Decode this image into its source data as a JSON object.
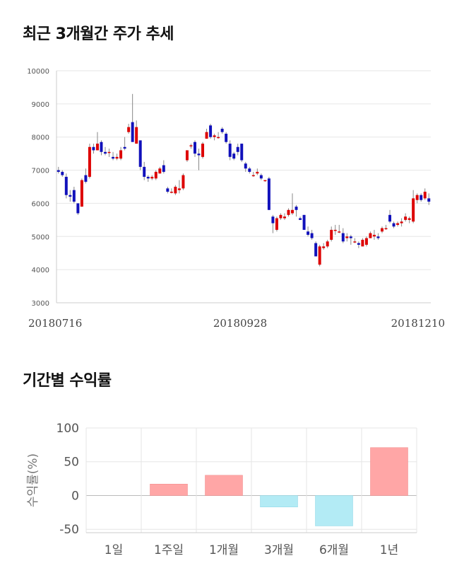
{
  "sections": {
    "stock_title": "최근 3개월간 주가 추세",
    "returns_title": "기간별 수익률"
  },
  "colors": {
    "up": "#dd0000",
    "down": "#1111bb",
    "grid": "#e6e6e6",
    "positive_bar": "#ffa6a6",
    "negative_bar": "#b3ebf5",
    "wick": "#888888"
  },
  "chart_data": [
    {
      "type": "candlestick",
      "title": "최근 3개월간 주가 추세",
      "ylim": [
        3000,
        10000
      ],
      "yticks": [
        3000,
        4000,
        5000,
        6000,
        7000,
        8000,
        9000,
        10000
      ],
      "xtick_labels": [
        "20180716",
        "20180928",
        "20181210"
      ],
      "grid": true,
      "ohlc": [
        [
          7000,
          7100,
          6900,
          6950
        ],
        [
          6950,
          7000,
          6800,
          6850
        ],
        [
          6800,
          6900,
          6150,
          6250
        ],
        [
          6250,
          6400,
          6050,
          6200
        ],
        [
          6400,
          6500,
          6000,
          6050
        ],
        [
          6000,
          6000,
          5650,
          5700
        ],
        [
          5900,
          6750,
          5900,
          6700
        ],
        [
          6850,
          7050,
          6600,
          6650
        ],
        [
          6800,
          7800,
          6750,
          7700
        ],
        [
          7700,
          7800,
          7500,
          7600
        ],
        [
          7600,
          8150,
          7600,
          7800
        ],
        [
          7850,
          7900,
          7450,
          7550
        ],
        [
          7550,
          7700,
          7450,
          7500
        ],
        [
          7550,
          7650,
          7400,
          7550
        ],
        [
          7400,
          7550,
          7300,
          7350
        ],
        [
          7350,
          7500,
          7300,
          7400
        ],
        [
          7350,
          7700,
          7300,
          7600
        ],
        [
          7700,
          8000,
          7600,
          7650
        ],
        [
          8150,
          8400,
          8100,
          8300
        ],
        [
          8450,
          9300,
          7900,
          7850
        ],
        [
          7800,
          8500,
          7800,
          8300
        ],
        [
          7900,
          7900,
          7000,
          7100
        ],
        [
          7100,
          7250,
          6700,
          6800
        ],
        [
          6800,
          6850,
          6650,
          6750
        ],
        [
          6750,
          6850,
          6700,
          6800
        ],
        [
          6750,
          7000,
          6700,
          6950
        ],
        [
          6900,
          7100,
          6900,
          7050
        ],
        [
          7150,
          7300,
          6900,
          6950
        ],
        [
          6450,
          6500,
          6300,
          6350
        ],
        [
          6350,
          6450,
          6300,
          6350
        ],
        [
          6300,
          6550,
          6250,
          6500
        ],
        [
          6400,
          6700,
          6300,
          6450
        ],
        [
          6450,
          6900,
          6400,
          6850
        ],
        [
          7300,
          7600,
          7250,
          7600
        ],
        [
          7750,
          7800,
          7650,
          7750
        ],
        [
          7850,
          7900,
          7400,
          7500
        ],
        [
          7500,
          7650,
          7000,
          7450
        ],
        [
          7400,
          7850,
          7350,
          7800
        ],
        [
          7950,
          8250,
          7950,
          8150
        ],
        [
          8350,
          8400,
          7950,
          8000
        ],
        [
          8000,
          8100,
          7900,
          8050
        ],
        [
          8000,
          8150,
          7950,
          8000
        ],
        [
          8250,
          8300,
          8100,
          8150
        ],
        [
          8100,
          8150,
          7800,
          7850
        ],
        [
          7800,
          7900,
          7300,
          7400
        ],
        [
          7500,
          7550,
          7300,
          7350
        ],
        [
          7700,
          7800,
          7450,
          7550
        ],
        [
          7800,
          7800,
          7250,
          7300
        ],
        [
          7200,
          7250,
          6950,
          7050
        ],
        [
          7050,
          7100,
          6900,
          6950
        ],
        [
          6850,
          6950,
          6800,
          6850
        ],
        [
          6900,
          7050,
          6850,
          6950
        ],
        [
          6850,
          6900,
          6700,
          6750
        ],
        [
          6700,
          6700,
          6650,
          6700
        ],
        [
          6750,
          6800,
          5800,
          5800
        ],
        [
          5600,
          5650,
          5100,
          5400
        ],
        [
          5200,
          5600,
          5150,
          5550
        ],
        [
          5550,
          5700,
          5500,
          5650
        ],
        [
          5550,
          5700,
          5500,
          5600
        ],
        [
          5650,
          5850,
          5600,
          5800
        ],
        [
          5700,
          6300,
          5650,
          5800
        ],
        [
          5900,
          5950,
          5600,
          5800
        ],
        [
          5550,
          5600,
          5500,
          5500
        ],
        [
          5650,
          5650,
          5200,
          5200
        ],
        [
          5150,
          5300,
          5000,
          5050
        ],
        [
          5100,
          5200,
          4900,
          4950
        ],
        [
          4800,
          4850,
          4400,
          4400
        ],
        [
          4150,
          4750,
          4100,
          4700
        ],
        [
          4650,
          4800,
          4600,
          4700
        ],
        [
          4700,
          4900,
          4650,
          4850
        ],
        [
          4900,
          5300,
          4850,
          5200
        ],
        [
          5200,
          5350,
          5050,
          5200
        ],
        [
          5150,
          5350,
          5100,
          5150
        ],
        [
          5100,
          5250,
          4800,
          4850
        ],
        [
          4950,
          5100,
          4850,
          5000
        ],
        [
          5000,
          5050,
          4750,
          4950
        ],
        [
          4850,
          4950,
          4800,
          4850
        ],
        [
          4800,
          4850,
          4650,
          4750
        ],
        [
          4700,
          4950,
          4700,
          4900
        ],
        [
          4750,
          5000,
          4700,
          4950
        ],
        [
          4950,
          5150,
          4950,
          5100
        ],
        [
          5000,
          5200,
          4900,
          5050
        ],
        [
          5000,
          5100,
          4900,
          4950
        ],
        [
          5150,
          5300,
          5100,
          5250
        ],
        [
          5250,
          5350,
          5200,
          5250
        ],
        [
          5650,
          5800,
          5400,
          5450
        ],
        [
          5400,
          5450,
          5250,
          5300
        ],
        [
          5350,
          5450,
          5300,
          5400
        ],
        [
          5400,
          5550,
          5300,
          5450
        ],
        [
          5500,
          5700,
          5450,
          5600
        ],
        [
          5500,
          5600,
          5400,
          5550
        ],
        [
          5450,
          6400,
          5400,
          6150
        ],
        [
          6100,
          6300,
          6000,
          6250
        ],
        [
          6250,
          6300,
          6050,
          6100
        ],
        [
          6150,
          6450,
          6100,
          6350
        ],
        [
          6150,
          6300,
          5950,
          6050
        ]
      ]
    },
    {
      "type": "bar",
      "ylabel": "수익률(%)",
      "ylim": [
        -55,
        100
      ],
      "yticks": [
        100,
        50,
        0,
        -50
      ],
      "categories": [
        "1일",
        "1주일",
        "1개월",
        "3개월",
        "6개월",
        "1년"
      ],
      "values": [
        0,
        17,
        30,
        -17,
        -45,
        71
      ],
      "grid": true
    }
  ]
}
